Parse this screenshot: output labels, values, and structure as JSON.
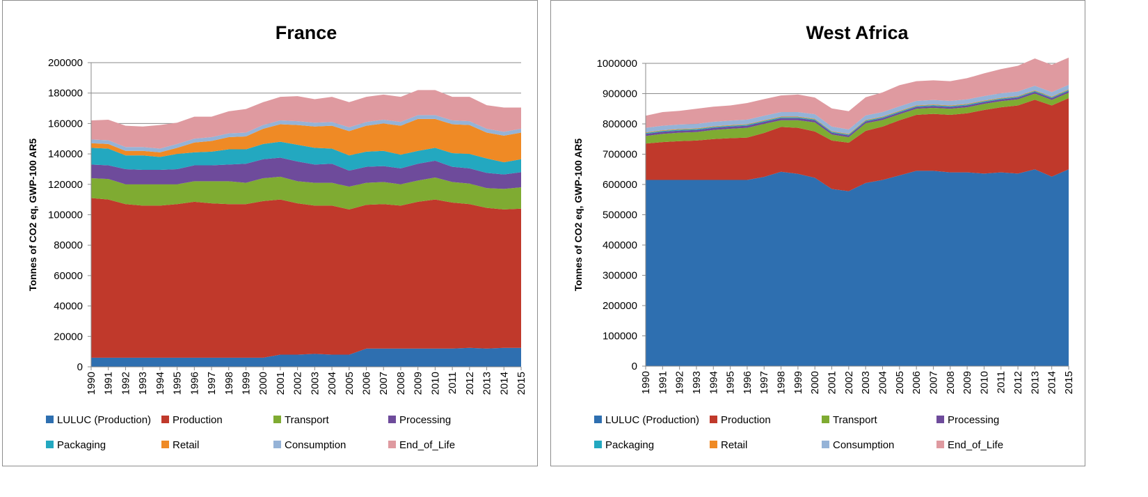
{
  "chart_data": [
    {
      "type": "area",
      "stacked": true,
      "title": "France",
      "xlabel": "",
      "ylabel": "Tonnes of CO2 eq, GWP-100 AR5",
      "ylim": [
        0,
        200000
      ],
      "yticks": [
        0,
        20000,
        40000,
        60000,
        80000,
        100000,
        120000,
        140000,
        160000,
        180000,
        200000
      ],
      "grid": true,
      "legend_position": "bottom",
      "x": [
        "1990",
        "1991",
        "1992",
        "1993",
        "1994",
        "1995",
        "1996",
        "1997",
        "1998",
        "1999",
        "2000",
        "2001",
        "2002",
        "2003",
        "2004",
        "2005",
        "2006",
        "2007",
        "2008",
        "2009",
        "2010",
        "2011",
        "2012",
        "2013",
        "2014",
        "2015"
      ],
      "series": [
        {
          "name": "LULUC (Production)",
          "color": "#2e6fb0",
          "values": [
            6000,
            6000,
            6000,
            6000,
            6000,
            6000,
            6000,
            6000,
            6000,
            6000,
            6000,
            8000,
            8000,
            8500,
            8000,
            8000,
            12000,
            12000,
            12000,
            12000,
            12000,
            12000,
            12500,
            12000,
            12500,
            12500
          ]
        },
        {
          "name": "Production",
          "color": "#c0392b",
          "values": [
            105000,
            104000,
            101000,
            100000,
            100000,
            101000,
            102500,
            101500,
            101000,
            101000,
            103000,
            102000,
            99500,
            97500,
            98000,
            95500,
            94500,
            95000,
            94000,
            96500,
            98000,
            96000,
            94500,
            92500,
            91000,
            91500
          ]
        },
        {
          "name": "Transport",
          "color": "#7fab32",
          "values": [
            13000,
            13500,
            13000,
            14000,
            14000,
            13000,
            13500,
            14500,
            15000,
            14000,
            15000,
            15000,
            14500,
            15000,
            15000,
            15000,
            14500,
            14500,
            14000,
            14000,
            14500,
            13500,
            13500,
            13000,
            13500,
            14000
          ]
        },
        {
          "name": "Processing",
          "color": "#6e4b9b",
          "values": [
            9000,
            9000,
            10000,
            9500,
            9500,
            10000,
            10500,
            10500,
            11000,
            12500,
            12500,
            12500,
            13000,
            12000,
            12500,
            10500,
            10500,
            10500,
            10500,
            11000,
            11000,
            10000,
            10000,
            10000,
            9500,
            10000
          ]
        },
        {
          "name": "Packaging",
          "color": "#23a8c0",
          "values": [
            11000,
            11000,
            9000,
            9500,
            8500,
            10000,
            8500,
            9000,
            10000,
            9500,
            10000,
            10500,
            11000,
            11000,
            10000,
            10000,
            10000,
            10000,
            9000,
            8500,
            8500,
            9000,
            9500,
            9500,
            8000,
            8500
          ]
        },
        {
          "name": "Retail",
          "color": "#ef8a25",
          "values": [
            3000,
            3000,
            3000,
            3000,
            3000,
            4000,
            6500,
            7000,
            8000,
            8500,
            10000,
            11500,
            13000,
            14000,
            15000,
            16000,
            17000,
            18000,
            19000,
            21000,
            19000,
            19000,
            19000,
            17000,
            17500,
            17500
          ]
        },
        {
          "name": "Consumption",
          "color": "#95b3d7",
          "values": [
            2500,
            2500,
            2500,
            2500,
            2500,
            2500,
            2500,
            2500,
            2500,
            2500,
            2500,
            2500,
            2500,
            2500,
            2500,
            2500,
            2500,
            2500,
            2500,
            2500,
            2500,
            2500,
            2500,
            2500,
            2500,
            2500
          ]
        },
        {
          "name": "End_of_Life",
          "color": "#df9aa0",
          "values": [
            12500,
            13500,
            14000,
            13500,
            15500,
            14000,
            14500,
            13500,
            14500,
            15500,
            15000,
            15500,
            16500,
            15500,
            16500,
            16500,
            16500,
            16500,
            16500,
            16500,
            16500,
            15500,
            16000,
            15500,
            16000,
            14000
          ]
        }
      ]
    },
    {
      "type": "area",
      "stacked": true,
      "title": "West Africa",
      "xlabel": "",
      "ylabel": "Tonnes of CO2 eq, GWP-100 AR5",
      "ylim": [
        0,
        1000000
      ],
      "yticks": [
        0,
        100000,
        200000,
        300000,
        400000,
        500000,
        600000,
        700000,
        800000,
        900000,
        1000000
      ],
      "grid": true,
      "legend_position": "bottom",
      "x": [
        "1990",
        "1991",
        "1992",
        "1993",
        "1994",
        "1995",
        "1996",
        "1997",
        "1998",
        "1999",
        "2000",
        "2001",
        "2002",
        "2003",
        "2004",
        "2005",
        "2006",
        "2007",
        "2008",
        "2009",
        "2010",
        "2011",
        "2012",
        "2013",
        "2014",
        "2015"
      ],
      "series": [
        {
          "name": "LULUC (Production)",
          "color": "#2e6fb0",
          "values": [
            615000,
            615000,
            615000,
            615000,
            615000,
            615000,
            615000,
            625000,
            642000,
            635000,
            622000,
            585000,
            578000,
            605000,
            615000,
            630000,
            645000,
            645000,
            640000,
            640000,
            636000,
            640000,
            636000,
            650000,
            626000,
            650000
          ]
        },
        {
          "name": "Production",
          "color": "#c0392b",
          "values": [
            120000,
            125000,
            128000,
            130000,
            135000,
            138000,
            140000,
            145000,
            148000,
            152000,
            153000,
            160000,
            160000,
            172000,
            176000,
            182000,
            185000,
            188000,
            190000,
            195000,
            210000,
            215000,
            225000,
            230000,
            235000,
            235000
          ]
        },
        {
          "name": "Transport",
          "color": "#7fab32",
          "values": [
            25000,
            27000,
            28000,
            28000,
            30000,
            31000,
            32000,
            30000,
            22000,
            25000,
            30000,
            20000,
            18000,
            25000,
            22000,
            20000,
            20000,
            20000,
            20000,
            20000,
            20000,
            20000,
            20000,
            20000,
            18000,
            18000
          ]
        },
        {
          "name": "Processing",
          "color": "#6e4b9b",
          "values": [
            7000,
            7000,
            7000,
            7000,
            7000,
            7000,
            7000,
            7000,
            7000,
            7000,
            7000,
            6000,
            6000,
            6000,
            6000,
            6000,
            6000,
            6000,
            6000,
            6000,
            6000,
            6000,
            6000,
            6000,
            6000,
            6000
          ]
        },
        {
          "name": "Packaging",
          "color": "#23a8c0",
          "values": [
            3000,
            3000,
            3000,
            3000,
            3000,
            3000,
            3000,
            3000,
            3000,
            3000,
            3000,
            3000,
            3000,
            3000,
            3000,
            3000,
            3000,
            3000,
            3000,
            3000,
            3000,
            3000,
            3000,
            3000,
            3000,
            3000
          ]
        },
        {
          "name": "Retail",
          "color": "#ef8a25",
          "values": [
            2000,
            2000,
            2000,
            2000,
            2000,
            2000,
            2000,
            2000,
            2000,
            2000,
            2000,
            2000,
            2000,
            2000,
            2000,
            2000,
            2000,
            2000,
            2000,
            2000,
            2000,
            2000,
            2000,
            2000,
            2000,
            2000
          ]
        },
        {
          "name": "Consumption",
          "color": "#95b3d7",
          "values": [
            15000,
            15000,
            15000,
            15000,
            15000,
            15000,
            15000,
            15000,
            15000,
            15000,
            15000,
            15000,
            15000,
            15000,
            15000,
            15000,
            15000,
            15000,
            15000,
            15000,
            15000,
            15000,
            15000,
            15000,
            15000,
            15000
          ]
        },
        {
          "name": "End_of_Life",
          "color": "#df9aa0",
          "values": [
            40000,
            45000,
            45000,
            50000,
            50000,
            50000,
            55000,
            55000,
            55000,
            58000,
            55000,
            60000,
            60000,
            60000,
            65000,
            70000,
            65000,
            65000,
            65000,
            70000,
            75000,
            80000,
            85000,
            90000,
            90000,
            90000
          ]
        }
      ]
    }
  ]
}
